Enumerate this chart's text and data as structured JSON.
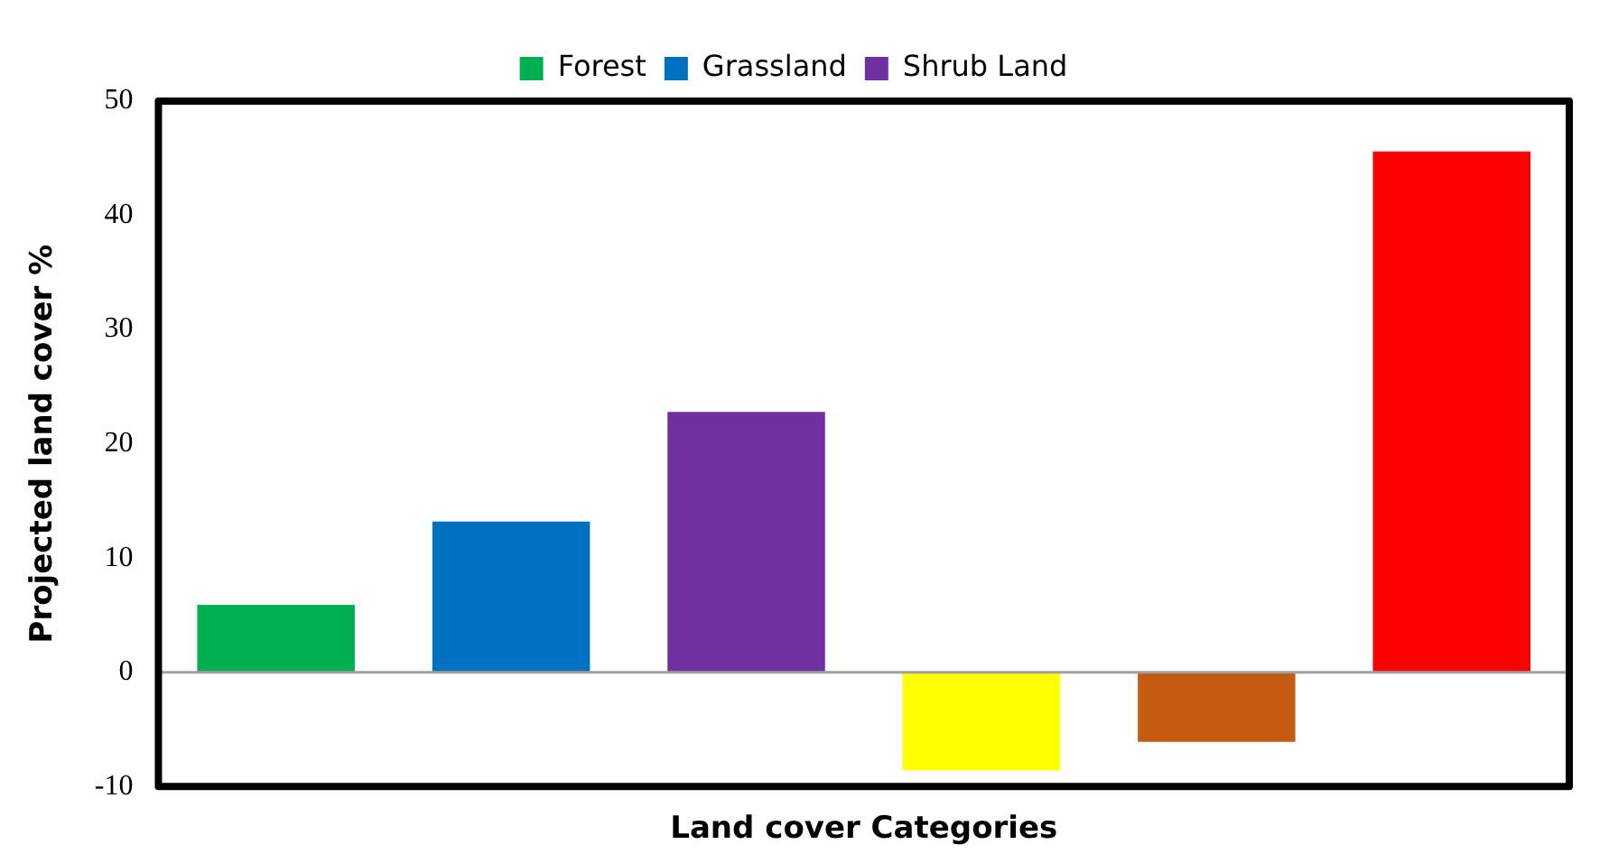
{
  "chart_data": {
    "type": "bar",
    "xlabel": "Land cover Categories",
    "ylabel": "Projected land cover %",
    "categories": [
      null,
      null,
      null,
      null,
      null,
      null
    ],
    "series": [
      {
        "name": "Forest",
        "color": "#00b050",
        "values": [
          5.9,
          null,
          null,
          null,
          null,
          null
        ]
      },
      {
        "name": "Grassland",
        "color": "#0070c0",
        "values": [
          null,
          13.2,
          null,
          null,
          null,
          null
        ]
      },
      {
        "name": "Shrub Land",
        "color": "#7030a0",
        "values": [
          null,
          null,
          22.8,
          null,
          null,
          null
        ]
      },
      {
        "color": "#ffff00",
        "values": [
          null,
          null,
          null,
          -8.6,
          null,
          null
        ]
      },
      {
        "color": "#c55a11",
        "values": [
          null,
          null,
          null,
          null,
          -6.1,
          null
        ]
      },
      {
        "color": "#ff0000",
        "values": [
          null,
          null,
          null,
          null,
          null,
          45.6
        ]
      }
    ],
    "ref_lines": [
      {
        "axis": "y",
        "value": 0,
        "color": "#a0a0a0"
      }
    ],
    "ylim": [
      -10,
      50
    ],
    "yticks": [
      -10,
      0,
      10,
      20,
      30,
      40,
      50
    ],
    "grid": false,
    "legend": "top",
    "tick_labels": "y"
  }
}
